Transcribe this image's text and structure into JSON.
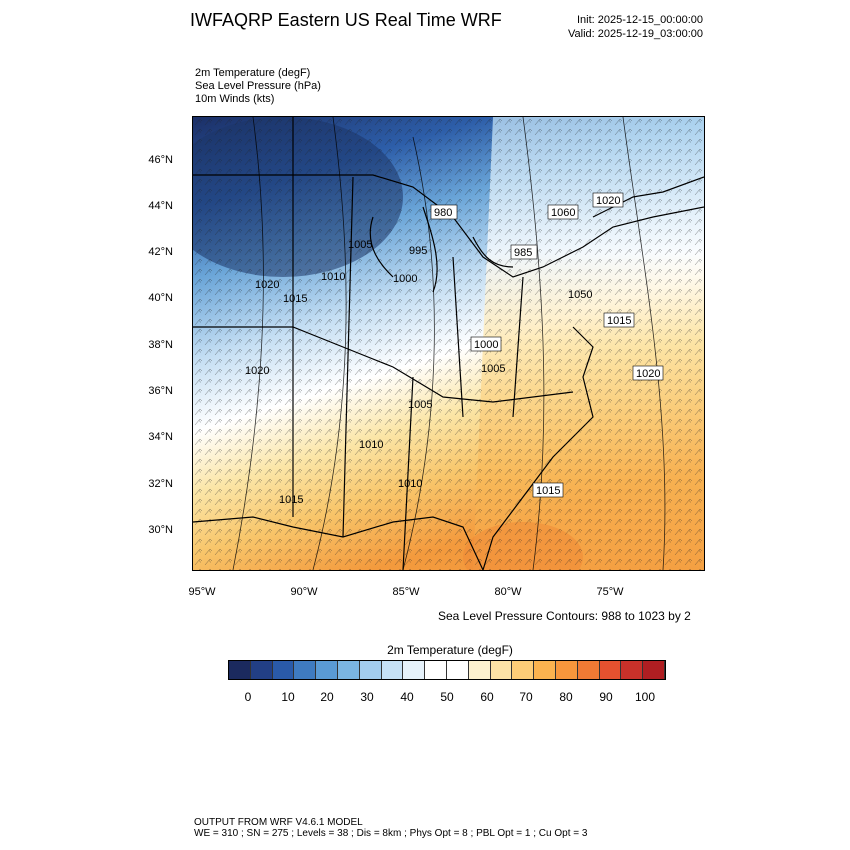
{
  "header": {
    "title": "IWFAQRP Eastern US Real Time WRF",
    "init": "Init: 2025-12-15_00:00:00",
    "valid": "Valid: 2025-12-19_03:00:00"
  },
  "fields": {
    "temp": "2m Temperature   (degF)",
    "slp": "Sea Level Pressure   (hPa)",
    "winds": "10m Winds   (kts)"
  },
  "axes": {
    "lat_labels": [
      "46°N",
      "44°N",
      "42°N",
      "40°N",
      "38°N",
      "36°N",
      "34°N",
      "32°N",
      "30°N"
    ],
    "lon_labels": [
      "95°W",
      "90°W",
      "85°W",
      "80°W",
      "75°W"
    ]
  },
  "pressure_labels": [
    "980",
    "1060",
    "1020",
    "1005",
    "995",
    "985",
    "1010",
    "1000",
    "1020",
    "1050",
    "1015",
    "1020",
    "1015",
    "1000",
    "1005",
    "1020",
    "1005",
    "1010",
    "1010",
    "1015",
    "1015"
  ],
  "contour_note": "Sea Level Pressure Contours: 988 to 1023 by 2",
  "colorbar": {
    "title": "2m Temperature  (degF)",
    "ticks": [
      "0",
      "10",
      "20",
      "30",
      "40",
      "50",
      "60",
      "70",
      "80",
      "90",
      "100"
    ],
    "colors": [
      "#1b2a5e",
      "#223f85",
      "#2a5aa8",
      "#3f7bc0",
      "#5a9ad4",
      "#7bb5e2",
      "#a2cdef",
      "#c6e1f6",
      "#e6f2fb",
      "#ffffff",
      "#ffffff",
      "#fdf1cf",
      "#fde3a6",
      "#fdcc77",
      "#fbb24f",
      "#f7963c",
      "#f07a34",
      "#e4512f",
      "#c9312a",
      "#b01e22"
    ]
  },
  "footer": {
    "line1": "OUTPUT FROM WRF V4.6.1 MODEL",
    "line2": "WE = 310 ; SN = 275 ; Levels = 38 ; Dis = 8km ; Phys Opt = 8 ; PBL Opt = 1 ; Cu Opt = 3"
  }
}
